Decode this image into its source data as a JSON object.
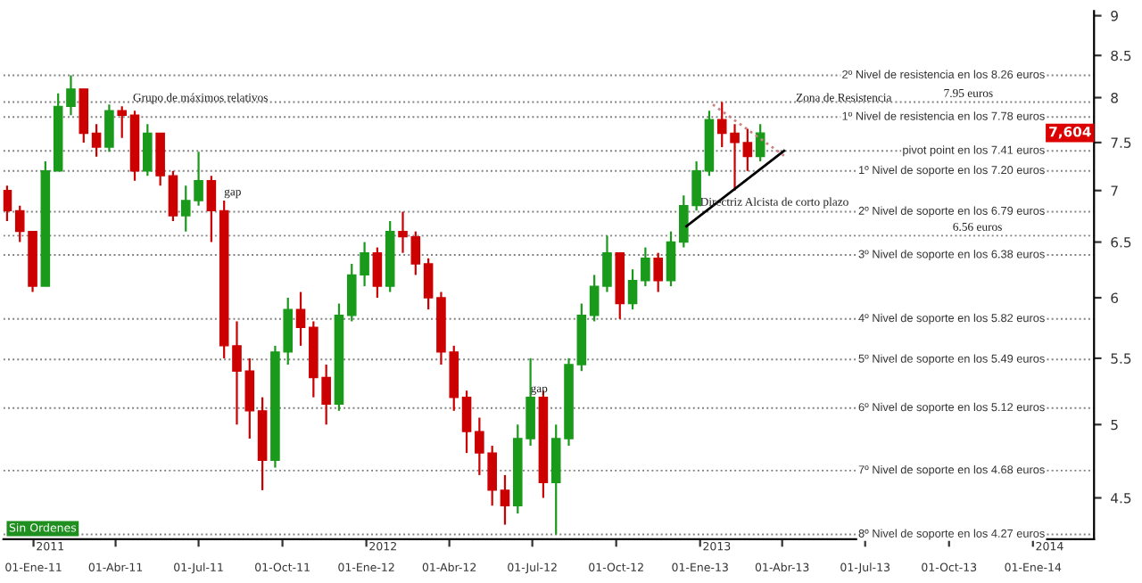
{
  "chart_data": {
    "type": "candlestick",
    "x": [
      "2010-12-03",
      "2010-12-17",
      "2010-12-31",
      "2011-01-14",
      "2011-01-28",
      "2011-02-11",
      "2011-02-25",
      "2011-03-11",
      "2011-03-25",
      "2011-04-08",
      "2011-04-22",
      "2011-05-06",
      "2011-05-20",
      "2011-06-03",
      "2011-06-17",
      "2011-07-01",
      "2011-07-15",
      "2011-07-29",
      "2011-08-12",
      "2011-08-26",
      "2011-09-09",
      "2011-09-23",
      "2011-10-07",
      "2011-10-21",
      "2011-11-04",
      "2011-11-18",
      "2011-12-02",
      "2011-12-16",
      "2011-12-30",
      "2012-01-13",
      "2012-01-27",
      "2012-02-10",
      "2012-02-24",
      "2012-03-09",
      "2012-03-23",
      "2012-04-06",
      "2012-04-20",
      "2012-05-04",
      "2012-05-18",
      "2012-06-01",
      "2012-06-15",
      "2012-06-29",
      "2012-07-13",
      "2012-07-27",
      "2012-08-10",
      "2012-08-24",
      "2012-09-07",
      "2012-09-21",
      "2012-10-05",
      "2012-10-19",
      "2012-11-02",
      "2012-11-16",
      "2012-11-30",
      "2012-12-14",
      "2012-12-28",
      "2013-01-11",
      "2013-01-25",
      "2013-02-08",
      "2013-02-22",
      "2013-03-08"
    ],
    "ohlc": [
      [
        7.0,
        7.05,
        6.7,
        6.8
      ],
      [
        6.8,
        6.85,
        6.5,
        6.6
      ],
      [
        6.6,
        6.6,
        6.05,
        6.1
      ],
      [
        6.1,
        7.3,
        6.1,
        7.2
      ],
      [
        7.2,
        8.05,
        7.2,
        7.9
      ],
      [
        7.9,
        8.26,
        7.8,
        8.1
      ],
      [
        8.1,
        8.1,
        7.5,
        7.6
      ],
      [
        7.6,
        7.7,
        7.35,
        7.45
      ],
      [
        7.45,
        7.92,
        7.4,
        7.85
      ],
      [
        7.85,
        7.9,
        7.55,
        7.8
      ],
      [
        7.8,
        7.85,
        7.1,
        7.2
      ],
      [
        7.2,
        7.7,
        7.15,
        7.6
      ],
      [
        7.6,
        7.6,
        7.05,
        7.15
      ],
      [
        7.15,
        7.2,
        6.7,
        6.75
      ],
      [
        6.75,
        7.05,
        6.6,
        6.9
      ],
      [
        6.9,
        7.4,
        6.85,
        7.1
      ],
      [
        7.1,
        7.15,
        6.5,
        6.8
      ],
      [
        6.8,
        6.9,
        5.5,
        5.6
      ],
      [
        5.6,
        5.8,
        5.0,
        5.4
      ],
      [
        5.4,
        5.5,
        4.9,
        5.1
      ],
      [
        5.1,
        5.2,
        4.55,
        4.75
      ],
      [
        4.75,
        5.6,
        4.7,
        5.55
      ],
      [
        5.55,
        6.0,
        5.45,
        5.9
      ],
      [
        5.9,
        6.05,
        5.6,
        5.75
      ],
      [
        5.75,
        5.8,
        5.2,
        5.35
      ],
      [
        5.35,
        5.45,
        5.0,
        5.15
      ],
      [
        5.15,
        5.95,
        5.1,
        5.85
      ],
      [
        5.85,
        6.3,
        5.8,
        6.2
      ],
      [
        6.2,
        6.5,
        6.1,
        6.4
      ],
      [
        6.4,
        6.45,
        6.0,
        6.1
      ],
      [
        6.1,
        6.7,
        6.05,
        6.6
      ],
      [
        6.6,
        6.79,
        6.4,
        6.55
      ],
      [
        6.55,
        6.6,
        6.2,
        6.3
      ],
      [
        6.3,
        6.35,
        5.9,
        6.0
      ],
      [
        6.0,
        6.05,
        5.45,
        5.55
      ],
      [
        5.55,
        5.6,
        5.1,
        5.2
      ],
      [
        5.2,
        5.25,
        4.8,
        4.95
      ],
      [
        4.95,
        5.05,
        4.65,
        4.8
      ],
      [
        4.8,
        4.85,
        4.45,
        4.55
      ],
      [
        4.55,
        4.65,
        4.33,
        4.45
      ],
      [
        4.45,
        5.0,
        4.4,
        4.9
      ],
      [
        4.9,
        5.5,
        4.85,
        5.2
      ],
      [
        5.2,
        5.25,
        4.5,
        4.6
      ],
      [
        4.6,
        5.0,
        4.27,
        4.9
      ],
      [
        4.9,
        5.5,
        4.85,
        5.45
      ],
      [
        5.45,
        5.95,
        5.4,
        5.85
      ],
      [
        5.85,
        6.2,
        5.8,
        6.1
      ],
      [
        6.1,
        6.56,
        6.05,
        6.4
      ],
      [
        6.4,
        6.4,
        5.82,
        5.95
      ],
      [
        5.95,
        6.25,
        5.9,
        6.15
      ],
      [
        6.15,
        6.45,
        6.1,
        6.35
      ],
      [
        6.35,
        6.4,
        6.05,
        6.15
      ],
      [
        6.15,
        6.6,
        6.1,
        6.5
      ],
      [
        6.5,
        6.95,
        6.45,
        6.85
      ],
      [
        6.85,
        7.3,
        6.8,
        7.2
      ],
      [
        7.2,
        7.85,
        7.15,
        7.75
      ],
      [
        7.75,
        7.95,
        7.45,
        7.6
      ],
      [
        7.6,
        7.7,
        7.0,
        7.5
      ],
      [
        7.5,
        7.65,
        7.2,
        7.35
      ],
      [
        7.35,
        7.7,
        7.3,
        7.604
      ]
    ],
    "series": [
      {
        "type": "line",
        "x": [
          "2012-12-17",
          "2013-04-03"
        ],
        "values": [
          6.65,
          7.41
        ],
        "color": "#000000",
        "line_style": "solid"
      },
      {
        "type": "line",
        "x": [
          "2013-01-15",
          "2013-04-03"
        ],
        "values": [
          7.92,
          7.36
        ],
        "color": "#d08080",
        "line_style": "dotted"
      }
    ],
    "log": "y",
    "xlim": [
      "2010-11-29",
      "2014-03-09"
    ],
    "ylim": [
      4.24,
      9.06
    ],
    "xticks": [
      {
        "value": "2011-01-01",
        "label": "01-Ene-11"
      },
      {
        "value": "2011-04-01",
        "label": "01-Abr-11"
      },
      {
        "value": "2011-07-01",
        "label": "01-Jul-11"
      },
      {
        "value": "2011-10-01",
        "label": "01-Oct-11"
      },
      {
        "value": "2012-01-01",
        "label": "01-Ene-12"
      },
      {
        "value": "2012-04-01",
        "label": "01-Abr-12"
      },
      {
        "value": "2012-07-01",
        "label": "01-Jul-12"
      },
      {
        "value": "2012-10-01",
        "label": "01-Oct-12"
      },
      {
        "value": "2013-01-01",
        "label": "01-Ene-13"
      },
      {
        "value": "2013-04-01",
        "label": "01-Abr-13"
      },
      {
        "value": "2013-07-01",
        "label": "01-Jul-13"
      },
      {
        "value": "2013-10-01",
        "label": "01-Oct-13"
      },
      {
        "value": "2014-01-01",
        "label": "01-Ene-14"
      }
    ],
    "yticks": [
      4.5,
      5,
      5.5,
      6,
      6.5,
      7,
      7.5,
      8,
      8.5,
      9
    ],
    "grid": false,
    "ref_lines": [
      {
        "axis": "y",
        "value": 8.26,
        "label": "2º Nivel de resistencia en los 8.26 euros",
        "color": "#808080",
        "line_style": "dotted"
      },
      {
        "axis": "y",
        "value": 7.95,
        "color": "#808080",
        "line_style": "dotted"
      },
      {
        "axis": "y",
        "value": 7.78,
        "label": "1º Nivel de resistencia en los 7.78 euros",
        "color": "#808080",
        "line_style": "dotted"
      },
      {
        "axis": "y",
        "value": 7.41,
        "label": "pivot point en los 7.41 euros",
        "color": "#808080",
        "line_style": "dotted"
      },
      {
        "axis": "y",
        "value": 7.2,
        "label": "1º Nivel de soporte en los 7.20 euros",
        "color": "#808080",
        "line_style": "dotted"
      },
      {
        "axis": "y",
        "value": 6.79,
        "label": "2º Nivel de soporte en los 6.79 euros",
        "color": "#808080",
        "line_style": "dotted"
      },
      {
        "axis": "y",
        "value": 6.56,
        "color": "#808080",
        "line_style": "dotted"
      },
      {
        "axis": "y",
        "value": 6.38,
        "label": "3º Nivel de soporte en los 6.38 euros",
        "color": "#808080",
        "line_style": "dotted"
      },
      {
        "axis": "y",
        "value": 5.82,
        "label": "4º Nivel de soporte en los 5.82 euros",
        "color": "#808080",
        "line_style": "dotted"
      },
      {
        "axis": "y",
        "value": 5.49,
        "label": "5º Nivel de soporte en los 5.49 euros",
        "color": "#808080",
        "line_style": "dotted"
      },
      {
        "axis": "y",
        "value": 5.12,
        "label": "6º Nivel de soporte en los 5.12 euros",
        "color": "#808080",
        "line_style": "dotted"
      },
      {
        "axis": "y",
        "value": 4.68,
        "label": "7º Nivel de soporte en los 4.68 euros",
        "color": "#808080",
        "line_style": "dotted"
      },
      {
        "axis": "y",
        "value": 4.27,
        "label": "8º Nivel de soporte en los 4.27 euros",
        "color": "#808080",
        "line_style": "dotted"
      }
    ],
    "annotations": [
      {
        "text": "Grupo de máximos relativos",
        "x": "2011-04-20",
        "y": 7.9
      },
      {
        "text": "gap",
        "x": "2011-07-29",
        "y": 6.9
      },
      {
        "text": "gap",
        "x": "2012-06-29",
        "y": 5.2
      },
      {
        "text": "Directriz Alcista de corto plazo",
        "x": "2013-01-01",
        "y": 6.8
      },
      {
        "text": "Zona de Resistencia",
        "x": "2013-04-16",
        "y": 7.9
      },
      {
        "text": "7.95 euros",
        "x": "2013-09-25",
        "y": 7.95
      },
      {
        "text": "6.56 euros",
        "x": "2013-10-05",
        "y": 6.56
      },
      "7,604",
      {
        "text": "2011",
        "x": "2011-01-01",
        "y": 4.24
      },
      {
        "text": "2012",
        "x": "2012-01-01",
        "y": 4.24
      },
      {
        "text": "2013",
        "x": "2013-01-01",
        "y": 4.24
      },
      {
        "text": "2014",
        "x": "2014-01-01",
        "y": 4.24
      },
      "Sin Ordenes"
    ]
  }
}
